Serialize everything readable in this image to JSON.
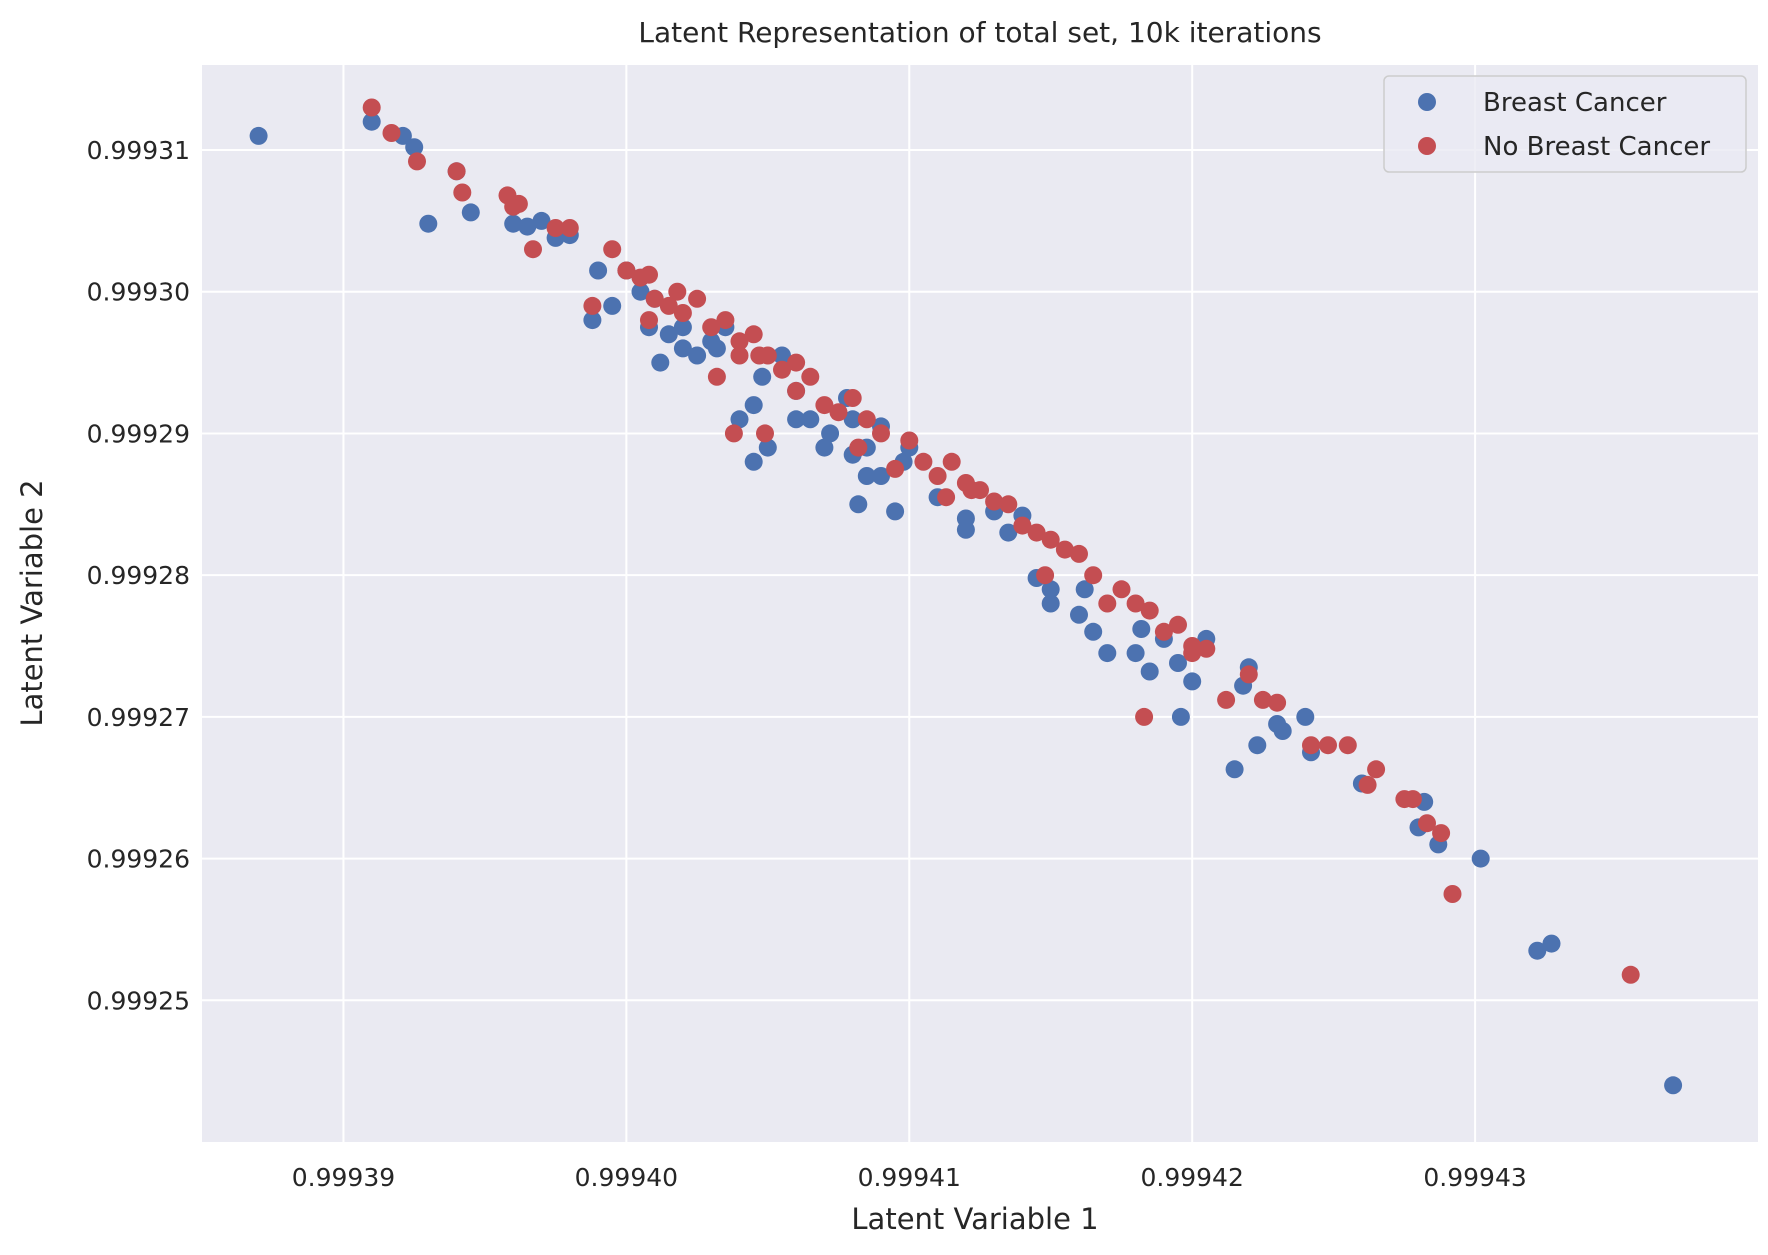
{
  "chart_data": {
    "type": "scatter",
    "title": "Latent Representation of total set, 10k iterations",
    "xlabel": "Latent Variable 1",
    "ylabel": "Latent Variable 2",
    "xlim": [
      0.999385,
      0.99944
    ],
    "ylim": [
      0.99924,
      0.999316
    ],
    "xticks": [
      0.99939,
      0.9994,
      0.99941,
      0.99942,
      0.99943
    ],
    "xtick_labels": [
      "0.99939",
      "0.99940",
      "0.99941",
      "0.99942",
      "0.99943"
    ],
    "yticks": [
      0.99925,
      0.99926,
      0.99927,
      0.99928,
      0.99929,
      0.9993,
      0.99931
    ],
    "ytick_labels": [
      "0.99925",
      "0.99926",
      "0.99927",
      "0.99928",
      "0.99929",
      "0.99930",
      "0.99931"
    ],
    "grid": true,
    "legend_position": "top-right",
    "series": [
      {
        "name": "Breast Cancer",
        "color": "#4c72b0",
        "points": [
          [
            0.999387,
            0.999311
          ],
          [
            0.999391,
            0.999312
          ],
          [
            0.9993921,
            0.999311
          ],
          [
            0.9993925,
            0.9993102
          ],
          [
            0.999393,
            0.9993048
          ],
          [
            0.999394,
            0.9993085
          ],
          [
            0.9993945,
            0.9993056
          ],
          [
            0.999396,
            0.9993048
          ],
          [
            0.9993965,
            0.9993046
          ],
          [
            0.999397,
            0.999305
          ],
          [
            0.9993975,
            0.9993038
          ],
          [
            0.999398,
            0.999304
          ],
          [
            0.9993988,
            0.999298
          ],
          [
            0.999399,
            0.9993015
          ],
          [
            0.9993995,
            0.999299
          ],
          [
            0.9994,
            0.9993015
          ],
          [
            0.9994005,
            0.9993
          ],
          [
            0.9994008,
            0.9992975
          ],
          [
            0.999401,
            0.9992995
          ],
          [
            0.9994012,
            0.999295
          ],
          [
            0.9994015,
            0.999297
          ],
          [
            0.999402,
            0.999296
          ],
          [
            0.999402,
            0.9992975
          ],
          [
            0.9994025,
            0.9992955
          ],
          [
            0.999403,
            0.9992965
          ],
          [
            0.9994032,
            0.999296
          ],
          [
            0.9994035,
            0.9992975
          ],
          [
            0.999404,
            0.999291
          ],
          [
            0.9994045,
            0.999288
          ],
          [
            0.9994045,
            0.999292
          ],
          [
            0.9994048,
            0.999294
          ],
          [
            0.999405,
            0.999289
          ],
          [
            0.9994055,
            0.9992955
          ],
          [
            0.999406,
            0.999291
          ],
          [
            0.999406,
            0.999293
          ],
          [
            0.9994065,
            0.999291
          ],
          [
            0.999407,
            0.999289
          ],
          [
            0.9994072,
            0.99929
          ],
          [
            0.9994078,
            0.9992925
          ],
          [
            0.999408,
            0.9992885
          ],
          [
            0.999408,
            0.999291
          ],
          [
            0.9994082,
            0.999285
          ],
          [
            0.9994085,
            0.999287
          ],
          [
            0.999409,
            0.999287
          ],
          [
            0.9994085,
            0.999289
          ],
          [
            0.999409,
            0.9992905
          ],
          [
            0.9994095,
            0.9992845
          ],
          [
            0.9994098,
            0.999288
          ],
          [
            0.99941,
            0.999289
          ],
          [
            0.999411,
            0.9992855
          ],
          [
            0.999412,
            0.999284
          ],
          [
            0.999412,
            0.9992832
          ],
          [
            0.999413,
            0.9992845
          ],
          [
            0.9994135,
            0.999283
          ],
          [
            0.999414,
            0.9992842
          ],
          [
            0.9994145,
            0.9992798
          ],
          [
            0.999415,
            0.999279
          ],
          [
            0.999415,
            0.999278
          ],
          [
            0.999416,
            0.9992772
          ],
          [
            0.9994162,
            0.999279
          ],
          [
            0.9994165,
            0.999276
          ],
          [
            0.999417,
            0.9992745
          ],
          [
            0.999418,
            0.9992745
          ],
          [
            0.9994182,
            0.9992762
          ],
          [
            0.9994185,
            0.9992732
          ],
          [
            0.999419,
            0.9992755
          ],
          [
            0.9994195,
            0.9992738
          ],
          [
            0.9994196,
            0.99927
          ],
          [
            0.99942,
            0.9992725
          ],
          [
            0.9994205,
            0.9992755
          ],
          [
            0.9994215,
            0.9992663
          ],
          [
            0.9994218,
            0.9992722
          ],
          [
            0.999422,
            0.9992735
          ],
          [
            0.9994223,
            0.999268
          ],
          [
            0.999423,
            0.9992695
          ],
          [
            0.9994232,
            0.999269
          ],
          [
            0.999424,
            0.99927
          ],
          [
            0.9994242,
            0.9992675
          ],
          [
            0.999426,
            0.9992653
          ],
          [
            0.999428,
            0.9992622
          ],
          [
            0.9994282,
            0.999264
          ],
          [
            0.9994287,
            0.999261
          ],
          [
            0.9994302,
            0.99926
          ],
          [
            0.9994322,
            0.9992535
          ],
          [
            0.9994327,
            0.999254
          ],
          [
            0.999437,
            0.999244
          ]
        ]
      },
      {
        "name": "No Breast Cancer",
        "color": "#c44e52",
        "points": [
          [
            0.999391,
            0.999313
          ],
          [
            0.9993917,
            0.9993112
          ],
          [
            0.9993926,
            0.9993092
          ],
          [
            0.999394,
            0.9993085
          ],
          [
            0.9993942,
            0.999307
          ],
          [
            0.9993958,
            0.9993068
          ],
          [
            0.999396,
            0.999306
          ],
          [
            0.9993962,
            0.9993062
          ],
          [
            0.9993967,
            0.999303
          ],
          [
            0.9993975,
            0.9993045
          ],
          [
            0.999398,
            0.9993045
          ],
          [
            0.9993988,
            0.999299
          ],
          [
            0.9993995,
            0.999303
          ],
          [
            0.9994,
            0.9993015
          ],
          [
            0.9994005,
            0.999301
          ],
          [
            0.9994008,
            0.9993012
          ],
          [
            0.9994008,
            0.999298
          ],
          [
            0.999401,
            0.9992995
          ],
          [
            0.9994015,
            0.999299
          ],
          [
            0.9994018,
            0.9993
          ],
          [
            0.999402,
            0.9992985
          ],
          [
            0.9994025,
            0.9992995
          ],
          [
            0.999403,
            0.9992975
          ],
          [
            0.9994032,
            0.999294
          ],
          [
            0.9994035,
            0.999298
          ],
          [
            0.9994038,
            0.99929
          ],
          [
            0.999404,
            0.9992965
          ],
          [
            0.999404,
            0.9992955
          ],
          [
            0.9994045,
            0.999297
          ],
          [
            0.9994047,
            0.9992955
          ],
          [
            0.9994049,
            0.99929
          ],
          [
            0.999405,
            0.9992955
          ],
          [
            0.9994055,
            0.9992945
          ],
          [
            0.999406,
            0.999295
          ],
          [
            0.999406,
            0.999293
          ],
          [
            0.9994065,
            0.999294
          ],
          [
            0.999407,
            0.999292
          ],
          [
            0.9994075,
            0.9992915
          ],
          [
            0.999408,
            0.9992925
          ],
          [
            0.9994082,
            0.999289
          ],
          [
            0.9994085,
            0.999291
          ],
          [
            0.999409,
            0.99929
          ],
          [
            0.9994095,
            0.9992875
          ],
          [
            0.99941,
            0.9992895
          ],
          [
            0.9994105,
            0.999288
          ],
          [
            0.999411,
            0.999287
          ],
          [
            0.9994113,
            0.9992855
          ],
          [
            0.9994115,
            0.999288
          ],
          [
            0.999412,
            0.9992865
          ],
          [
            0.9994122,
            0.999286
          ],
          [
            0.9994125,
            0.999286
          ],
          [
            0.999413,
            0.9992852
          ],
          [
            0.9994135,
            0.999285
          ],
          [
            0.999414,
            0.9992835
          ],
          [
            0.9994145,
            0.999283
          ],
          [
            0.9994148,
            0.99928
          ],
          [
            0.999415,
            0.9992825
          ],
          [
            0.9994155,
            0.9992818
          ],
          [
            0.999416,
            0.9992815
          ],
          [
            0.9994165,
            0.99928
          ],
          [
            0.999417,
            0.999278
          ],
          [
            0.9994175,
            0.999279
          ],
          [
            0.999418,
            0.999278
          ],
          [
            0.9994183,
            0.99927
          ],
          [
            0.9994185,
            0.9992775
          ],
          [
            0.999419,
            0.999276
          ],
          [
            0.9994195,
            0.9992765
          ],
          [
            0.99942,
            0.999275
          ],
          [
            0.99942,
            0.9992745
          ],
          [
            0.9994205,
            0.9992748
          ],
          [
            0.9994212,
            0.9992712
          ],
          [
            0.999422,
            0.999273
          ],
          [
            0.9994225,
            0.9992712
          ],
          [
            0.999423,
            0.999271
          ],
          [
            0.9994242,
            0.999268
          ],
          [
            0.9994248,
            0.999268
          ],
          [
            0.9994255,
            0.999268
          ],
          [
            0.9994262,
            0.9992652
          ],
          [
            0.9994265,
            0.9992663
          ],
          [
            0.9994275,
            0.9992642
          ],
          [
            0.9994278,
            0.9992642
          ],
          [
            0.9994283,
            0.9992625
          ],
          [
            0.9994288,
            0.9992618
          ],
          [
            0.9994292,
            0.9992575
          ],
          [
            0.9994355,
            0.9992518
          ]
        ]
      }
    ]
  }
}
